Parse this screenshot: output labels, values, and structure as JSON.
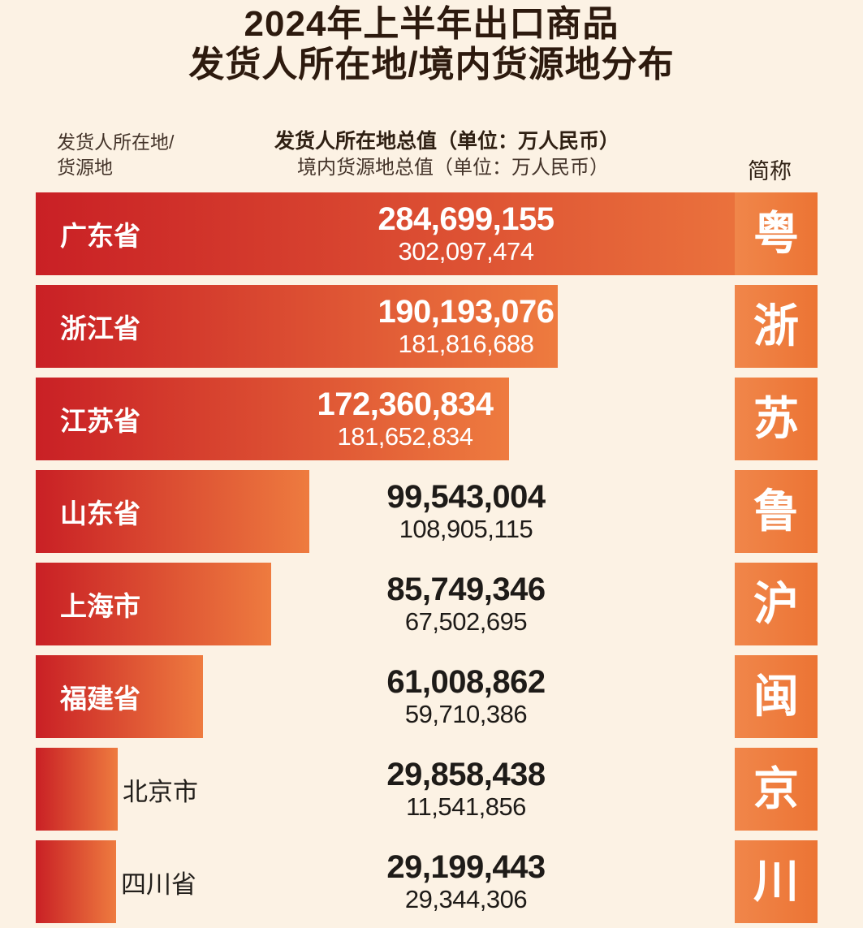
{
  "title": {
    "line1": "2024年上半年出口商品",
    "line2": "发货人所在地/境内货源地分布"
  },
  "headers": {
    "left_line1": "发货人所在地/",
    "left_line2": "货源地",
    "center_line1": "发货人所在地总值（单位：万人民币）",
    "center_line2": "境内货源地总值（单位：万人民币）",
    "right": "简称"
  },
  "chart_data": {
    "type": "bar",
    "orientation": "horizontal",
    "title": "2024年上半年出口商品 发货人所在地/境内货源地分布",
    "value_unit": "万人民币",
    "bar_length_metric": "发货人所在地总值",
    "categories": [
      "广东省",
      "浙江省",
      "江苏省",
      "山东省",
      "上海市",
      "福建省",
      "北京市",
      "四川省"
    ],
    "series": [
      {
        "name": "发货人所在地总值",
        "values": [
          284699155,
          190193076,
          172360834,
          99543004,
          85749346,
          61008862,
          29858438,
          29199443
        ]
      },
      {
        "name": "境内货源地总值",
        "values": [
          302097474,
          181816688,
          181652834,
          108905115,
          67502695,
          59710386,
          11541856,
          29344306
        ]
      }
    ],
    "rows": [
      {
        "province": "广东省",
        "abbr": "粤",
        "shipper_total": 284699155,
        "origin_total": 302097474,
        "shipper_total_display": "284,699,155",
        "origin_total_display": "302,097,474"
      },
      {
        "province": "浙江省",
        "abbr": "浙",
        "shipper_total": 190193076,
        "origin_total": 181816688,
        "shipper_total_display": "190,193,076",
        "origin_total_display": "181,816,688"
      },
      {
        "province": "江苏省",
        "abbr": "苏",
        "shipper_total": 172360834,
        "origin_total": 181652834,
        "shipper_total_display": "172,360,834",
        "origin_total_display": "181,652,834"
      },
      {
        "province": "山东省",
        "abbr": "鲁",
        "shipper_total": 99543004,
        "origin_total": 108905115,
        "shipper_total_display": "99,543,004",
        "origin_total_display": "108,905,115"
      },
      {
        "province": "上海市",
        "abbr": "沪",
        "shipper_total": 85749346,
        "origin_total": 67502695,
        "shipper_total_display": "85,749,346",
        "origin_total_display": "67,502,695"
      },
      {
        "province": "福建省",
        "abbr": "闽",
        "shipper_total": 61008862,
        "origin_total": 59710386,
        "shipper_total_display": "61,008,862",
        "origin_total_display": "59,710,386"
      },
      {
        "province": "北京市",
        "abbr": "京",
        "shipper_total": 29858438,
        "origin_total": 11541856,
        "shipper_total_display": "29,858,438",
        "origin_total_display": "11,541,856"
      },
      {
        "province": "四川省",
        "abbr": "川",
        "shipper_total": 29199443,
        "origin_total": 29344306,
        "shipper_total_display": "29,199,443",
        "origin_total_display": "29,344,306"
      }
    ],
    "colors": {
      "bar_gradient_start": "#c92025",
      "bar_gradient_end": "#ee7b3f",
      "badge": "#ed7d3e",
      "background": "#fcf2e4",
      "title_text": "#2d1a0e",
      "header_text": "#44342a",
      "value_text_dark": "#1e1b18",
      "value_text_light": "#ffffff"
    },
    "legend_position": "none",
    "grid": false
  }
}
